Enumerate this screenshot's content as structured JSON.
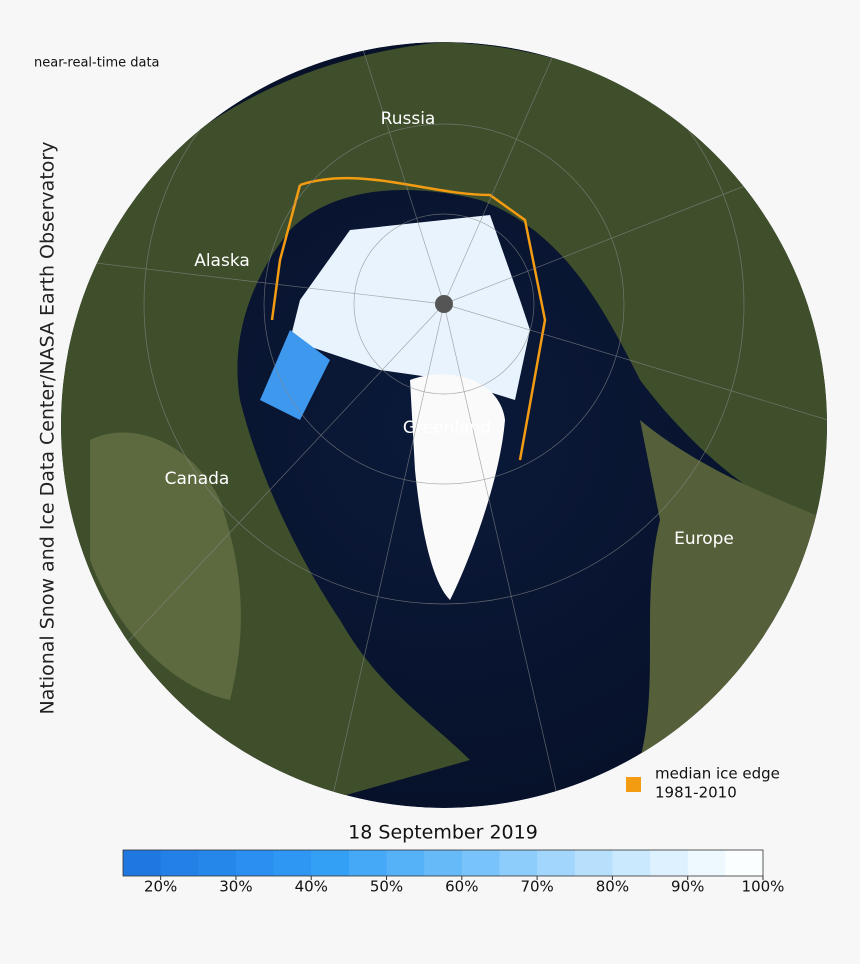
{
  "header": {
    "note": "near-real-time data",
    "credit": "National Snow and Ice Data Center/NASA Earth Observatory"
  },
  "map": {
    "places": [
      "Russia",
      "Alaska",
      "Greenland",
      "Canada",
      "Europe"
    ]
  },
  "legend": {
    "label_lines": [
      "median ice edge",
      "1981-2010"
    ],
    "color": "#f39c12"
  },
  "colorbar": {
    "title": "18 September 2019",
    "lim": [
      15,
      100
    ],
    "colors": [
      "#1f78e0",
      "#2280e6",
      "#2587ea",
      "#2a8ff0",
      "#2e96f3",
      "#33a0f6",
      "#45a9f7",
      "#55b1f8",
      "#66baf8",
      "#78c3fa",
      "#8dcdfb",
      "#a2d6fc",
      "#b7e0fd",
      "#cbe9fe",
      "#def1fe",
      "#edf8ff",
      "#fbfeff"
    ],
    "ticks": [
      {
        "value": 20,
        "label": "20%"
      },
      {
        "value": 30,
        "label": "30%"
      },
      {
        "value": 40,
        "label": "40%"
      },
      {
        "value": 50,
        "label": "50%"
      },
      {
        "value": 60,
        "label": "60%"
      },
      {
        "value": 70,
        "label": "70%"
      },
      {
        "value": 80,
        "label": "80%"
      },
      {
        "value": 90,
        "label": "90%"
      },
      {
        "value": 100,
        "label": "100%"
      }
    ]
  }
}
